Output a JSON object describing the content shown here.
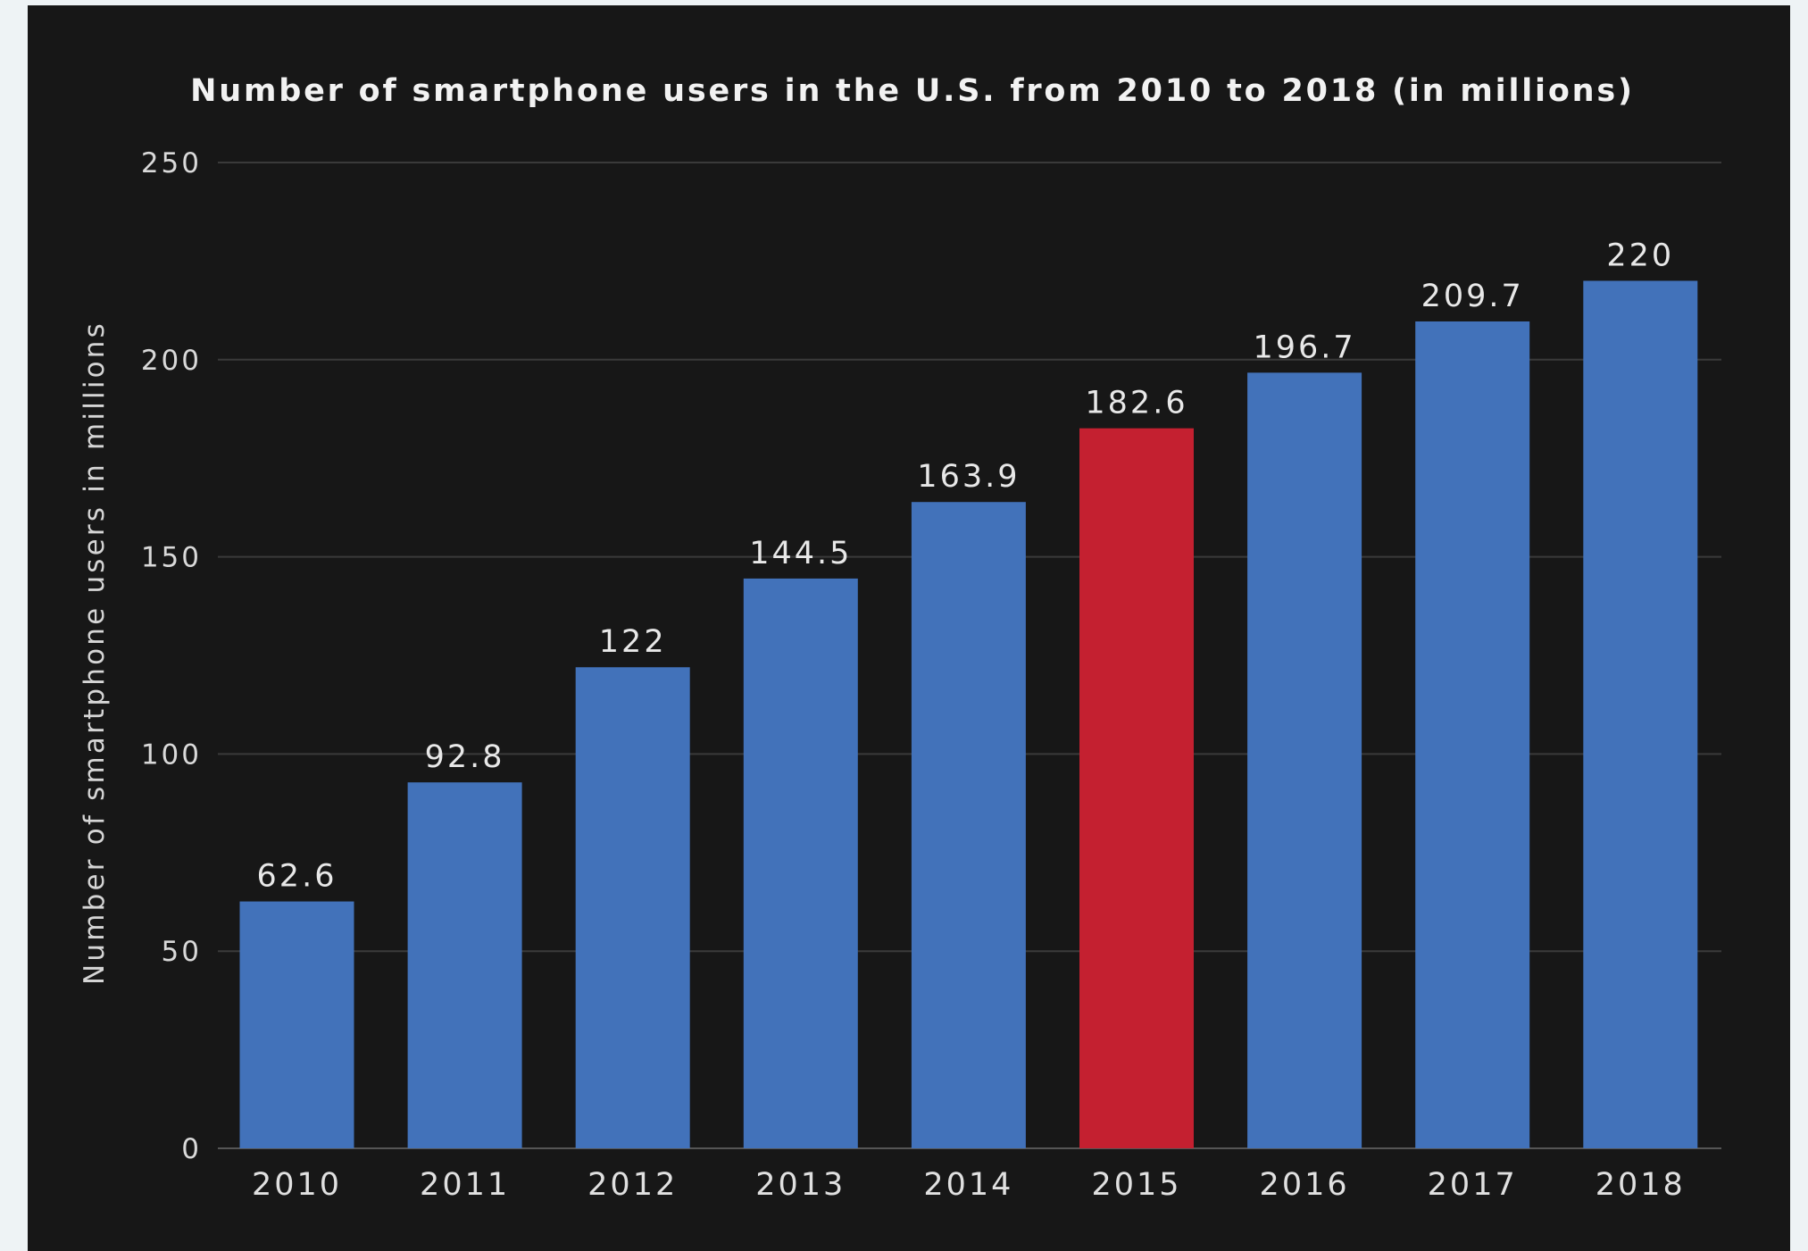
{
  "chart_data": {
    "type": "bar",
    "title": "Number of smartphone users in the U.S. from 2010 to 2018 (in millions)",
    "xlabel": "",
    "ylabel": "Number of smartphone users in millions",
    "categories": [
      "2010",
      "2011",
      "2012",
      "2013",
      "2014",
      "2015",
      "2016",
      "2017",
      "2018"
    ],
    "values": [
      62.6,
      92.8,
      122,
      144.5,
      163.9,
      182.6,
      196.7,
      209.7,
      220
    ],
    "value_labels": [
      "62.6",
      "92.8",
      "122",
      "144.5",
      "163.9",
      "182.6",
      "196.7",
      "209.7",
      "220"
    ],
    "ylim": [
      0,
      250
    ],
    "yticks": [
      "0",
      "50",
      "100",
      "150",
      "200",
      "250"
    ],
    "ytick_values": [
      0,
      50,
      100,
      150,
      200,
      250
    ],
    "grid": true,
    "legend": "none",
    "highlight_category": "2015"
  },
  "colors": {
    "background": "#171717",
    "bar": "#4272ba",
    "highlight_bar": "#c42030",
    "page": "#eef3f5"
  }
}
